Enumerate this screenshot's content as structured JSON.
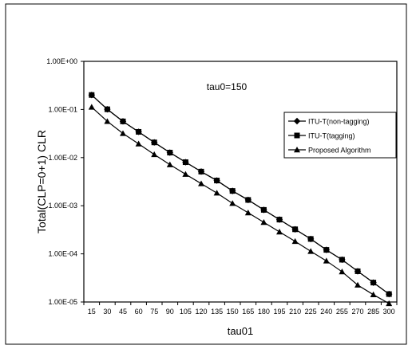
{
  "chart_data": {
    "type": "line",
    "title": "tau0=150",
    "xlabel": "tau01",
    "ylabel": "Total(CLP=0+1) CLR",
    "y_scale": "log",
    "ylim": [
      1e-05,
      1
    ],
    "y_ticks": [
      1,
      0.1,
      0.01,
      0.001,
      0.0001,
      1e-05
    ],
    "y_tick_labels": [
      "1.00E+00",
      "1.00E-01",
      "1.00E-02",
      "1.00E-03",
      "1.00E-04",
      "1.00E-05"
    ],
    "x": [
      15,
      30,
      45,
      60,
      75,
      90,
      105,
      120,
      135,
      150,
      165,
      180,
      195,
      210,
      225,
      240,
      255,
      270,
      285,
      300
    ],
    "grid": false,
    "legend_position": "right",
    "series": [
      {
        "name": "ITU-T(non-tagging)",
        "marker": "diamond",
        "values": [
          0.2,
          0.101,
          0.0566,
          0.0343,
          0.0207,
          0.0127,
          0.00804,
          0.00512,
          0.00334,
          0.00203,
          0.00132,
          0.00082,
          0.000515,
          0.000324,
          0.000204,
          0.000121,
          7.56e-05,
          4.35e-05,
          2.53e-05,
          1.46e-05
        ]
      },
      {
        "name": "ITU-T(tagging)",
        "marker": "square",
        "values": [
          0.2,
          0.101,
          0.0566,
          0.0343,
          0.0207,
          0.0127,
          0.00804,
          0.00512,
          0.00334,
          0.00203,
          0.00132,
          0.00082,
          0.000515,
          0.000324,
          0.000204,
          0.000121,
          7.56e-05,
          4.35e-05,
          2.53e-05,
          1.46e-05
        ]
      },
      {
        "name": "Proposed Algorithm",
        "marker": "triangle",
        "values": [
          0.112,
          0.0566,
          0.0318,
          0.0193,
          0.0116,
          0.00714,
          0.00452,
          0.00288,
          0.00184,
          0.00112,
          0.000714,
          0.000452,
          0.000286,
          0.000182,
          0.000113,
          7.14e-05,
          4.25e-05,
          2.25e-05,
          1.42e-05,
          9.3e-06
        ]
      }
    ]
  }
}
